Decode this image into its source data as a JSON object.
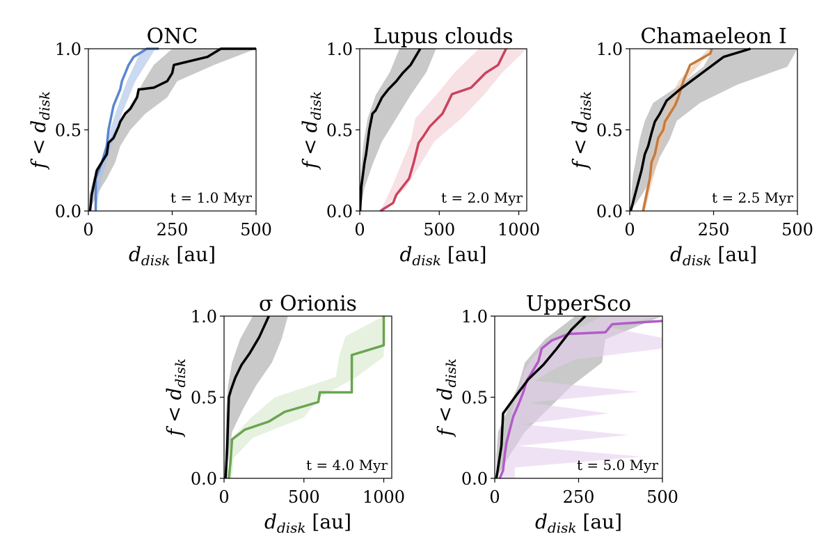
{
  "chart_data": [
    {
      "type": "line",
      "title": "ONC",
      "xlabel": "d_disk [au]",
      "ylabel": "f < d_disk",
      "xlim": [
        0,
        500
      ],
      "ylim": [
        0,
        1
      ],
      "xticks": [
        0,
        250,
        500
      ],
      "yticks": [
        0.0,
        0.5,
        1.0
      ],
      "xtick_labels": [
        "0",
        "250",
        "500"
      ],
      "ytick_labels": [
        "0.0",
        "0.5",
        "1.0"
      ],
      "annotation": "t = 1.0 Myr",
      "colors": {
        "simulation": "#000000",
        "simulation_band": "#c0c0c0",
        "observed": "#5b86d0",
        "observed_band": "#a9c0e8"
      },
      "series": [
        {
          "role": "simulation",
          "x": [
            5,
            10,
            25,
            40,
            55,
            60,
            75,
            90,
            95,
            110,
            125,
            145,
            150,
            155,
            195,
            235,
            250,
            255,
            355,
            395,
            500
          ],
          "y": [
            0,
            0.1,
            0.25,
            0.3,
            0.35,
            0.42,
            0.45,
            0.52,
            0.55,
            0.6,
            0.63,
            0.7,
            0.75,
            0.75,
            0.76,
            0.8,
            0.85,
            0.9,
            0.95,
            1.0,
            1.0
          ],
          "band_lower_x": [
            3,
            25,
            55,
            80,
            95,
            125,
            170,
            235,
            265,
            375,
            500
          ],
          "band_upper_x": [
            3,
            3,
            15,
            40,
            55,
            80,
            110,
            140,
            165,
            195,
            250
          ]
        },
        {
          "role": "observed",
          "x": [
            22,
            22,
            40,
            55,
            60,
            65,
            70,
            75,
            85,
            95,
            100,
            110,
            120,
            135,
            175,
            195,
            210
          ],
          "y": [
            0,
            0.2,
            0.3,
            0.4,
            0.5,
            0.55,
            0.6,
            0.65,
            0.7,
            0.75,
            0.8,
            0.85,
            0.9,
            0.95,
            1.0,
            1.0,
            1.0
          ],
          "band_lower_x": [
            22,
            40,
            70,
            100,
            140,
            200
          ],
          "band_upper_x": [
            18,
            30,
            50,
            80,
            115,
            160
          ]
        }
      ]
    },
    {
      "type": "line",
      "title": "Lupus clouds",
      "xlabel": "d_disk [au]",
      "ylabel": "f < d_disk",
      "xlim": [
        0,
        1050
      ],
      "ylim": [
        0,
        1
      ],
      "xticks": [
        0,
        500,
        1000
      ],
      "yticks": [
        0.0,
        0.5,
        1.0
      ],
      "xtick_labels": [
        "0",
        "500",
        "1000"
      ],
      "ytick_labels": [
        "0.0",
        "0.5",
        "1.0"
      ],
      "annotation": "t = 2.0 Myr",
      "colors": {
        "simulation": "#000000",
        "simulation_band": "#c0c0c0",
        "observed": "#c9435d",
        "observed_band": "#f2cdd3"
      },
      "series": [
        {
          "role": "simulation",
          "x": [
            2,
            10,
            30,
            40,
            60,
            80,
            100,
            140,
            180,
            230,
            270,
            320,
            380
          ],
          "y": [
            0,
            0.15,
            0.3,
            0.35,
            0.5,
            0.6,
            0.62,
            0.7,
            0.75,
            0.8,
            0.85,
            0.9,
            1.0
          ],
          "band_lower_x": [
            2,
            30,
            80,
            140,
            230,
            320,
            420,
            480
          ],
          "band_upper_x": [
            2,
            2,
            10,
            25,
            50,
            100,
            190,
            250
          ]
        },
        {
          "role": "observed",
          "x": [
            130,
            210,
            230,
            310,
            340,
            370,
            400,
            440,
            520,
            580,
            700,
            790,
            870,
            920
          ],
          "y": [
            0,
            0.05,
            0.1,
            0.2,
            0.3,
            0.42,
            0.46,
            0.52,
            0.6,
            0.72,
            0.76,
            0.85,
            0.9,
            1.0
          ],
          "band_lower_x": [
            130,
            290,
            380,
            470,
            640,
            780,
            900,
            1050
          ],
          "band_upper_x": [
            130,
            200,
            260,
            320,
            350,
            480,
            600,
            750
          ]
        }
      ]
    },
    {
      "type": "line",
      "title": "Chamaeleon I",
      "xlabel": "d_disk [au]",
      "ylabel": "f < d_disk",
      "xlim": [
        0,
        500
      ],
      "ylim": [
        0,
        1
      ],
      "xticks": [
        0,
        250,
        500
      ],
      "yticks": [
        0.0,
        0.5,
        1.0
      ],
      "xtick_labels": [
        "0",
        "250",
        "500"
      ],
      "ytick_labels": [
        "0.0",
        "0.5",
        "1.0"
      ],
      "annotation": "t = 2.5 Myr",
      "colors": {
        "simulation": "#000000",
        "simulation_band": "#c0c0c0",
        "observed": "#c47b3e",
        "observed_band": "#e9c4a6"
      },
      "series": [
        {
          "role": "simulation",
          "x": [
            3,
            35,
            45,
            55,
            65,
            75,
            90,
            110,
            150,
            280,
            360
          ],
          "y": [
            0,
            0.25,
            0.35,
            0.4,
            0.48,
            0.55,
            0.6,
            0.68,
            0.75,
            0.95,
            1.0
          ],
          "band_lower_x": [
            3,
            40,
            70,
            90,
            120,
            140,
            210,
            320,
            470,
            500
          ],
          "band_upper_x": [
            3,
            5,
            10,
            20,
            30,
            45,
            70,
            150,
            220,
            250
          ]
        },
        {
          "role": "observed",
          "x": [
            40,
            45,
            60,
            65,
            75,
            80,
            85,
            100,
            105,
            120,
            135,
            145,
            160,
            180,
            240,
            245
          ],
          "y": [
            0,
            0.05,
            0.2,
            0.3,
            0.35,
            0.4,
            0.45,
            0.5,
            0.55,
            0.6,
            0.65,
            0.7,
            0.8,
            0.9,
            0.97,
            1.0
          ],
          "band_lower_x": [
            45,
            70,
            95,
            125,
            165,
            250
          ],
          "band_upper_x": [
            35,
            55,
            75,
            105,
            145,
            235
          ]
        }
      ]
    },
    {
      "type": "line",
      "title": "σ Orionis",
      "xlabel": "d_disk [au]",
      "ylabel": "f < d_disk",
      "xlim": [
        0,
        1050
      ],
      "ylim": [
        0,
        1
      ],
      "xticks": [
        0,
        500,
        1000
      ],
      "yticks": [
        0.0,
        0.5,
        1.0
      ],
      "xtick_labels": [
        "0",
        "500",
        "1000"
      ],
      "ytick_labels": [
        "0.0",
        "0.5",
        "1.0"
      ],
      "annotation": "t = 4.0 Myr",
      "colors": {
        "simulation": "#000000",
        "simulation_band": "#c0c0c0",
        "observed": "#6aa450",
        "observed_band": "#d5e8cb"
      },
      "series": [
        {
          "role": "simulation",
          "x": [
            10,
            20,
            30,
            45,
            70,
            110,
            160,
            220,
            280
          ],
          "y": [
            0,
            0.2,
            0.5,
            0.55,
            0.62,
            0.7,
            0.77,
            0.87,
            1.0
          ],
          "band_lower_x": [
            10,
            30,
            50,
            120,
            200,
            300,
            360,
            400
          ],
          "band_upper_x": [
            8,
            8,
            10,
            15,
            25,
            50,
            100,
            180
          ]
        },
        {
          "role": "observed",
          "x": [
            30,
            40,
            50,
            130,
            280,
            380,
            590,
            600,
            800,
            800,
            1000,
            1000
          ],
          "y": [
            0,
            0.1,
            0.24,
            0.3,
            0.35,
            0.41,
            0.47,
            0.53,
            0.53,
            0.76,
            0.82,
            1.0
          ],
          "band_lower_x": [
            50,
            60,
            180,
            500,
            600,
            830,
            1000,
            1000,
            1000
          ],
          "band_upper_x": [
            30,
            30,
            50,
            170,
            320,
            700,
            720,
            760,
            1000
          ]
        }
      ]
    },
    {
      "type": "line",
      "title": "UpperSco",
      "xlabel": "d_disk [au]",
      "ylabel": "f < d_disk",
      "xlim": [
        0,
        500
      ],
      "ylim": [
        0,
        1
      ],
      "xticks": [
        0,
        250,
        500
      ],
      "yticks": [
        0.0,
        0.5,
        1.0
      ],
      "xtick_labels": [
        "0",
        "250",
        "500"
      ],
      "ytick_labels": [
        "0.0",
        "0.5",
        "1.0"
      ],
      "annotation": "t = 5.0 Myr",
      "colors": {
        "simulation": "#000000",
        "simulation_band": "#c0c0c0",
        "observed": "#b25cc7",
        "observed_band": "#e6cfee"
      },
      "series": [
        {
          "role": "simulation",
          "x": [
            5,
            20,
            25,
            60,
            100,
            145,
            185,
            230,
            270
          ],
          "y": [
            0,
            0.2,
            0.4,
            0.5,
            0.61,
            0.7,
            0.8,
            0.92,
            1.0
          ],
          "band_lower_x": [
            5,
            45,
            90,
            160,
            230,
            320,
            330,
            500
          ],
          "band_upper_x": [
            5,
            5,
            10,
            40,
            70,
            90,
            150,
            240
          ]
        },
        {
          "role": "observed",
          "x": [
            15,
            25,
            30,
            35,
            45,
            55,
            70,
            85,
            95,
            110,
            130,
            140,
            170,
            220,
            330,
            350,
            500
          ],
          "y": [
            0,
            0.05,
            0.15,
            0.22,
            0.3,
            0.38,
            0.45,
            0.53,
            0.6,
            0.65,
            0.72,
            0.8,
            0.85,
            0.89,
            0.9,
            0.95,
            0.97
          ],
          "band_lower_x": [
            60,
            60,
            440,
            70,
            400,
            80,
            340,
            100,
            430,
            120,
            170,
            240,
            500,
            500,
            330,
            500
          ],
          "band_upper_x": [
            20,
            25,
            30,
            35,
            40,
            45,
            50,
            60,
            70,
            80,
            90,
            110,
            140,
            180,
            260,
            320
          ]
        }
      ]
    }
  ]
}
